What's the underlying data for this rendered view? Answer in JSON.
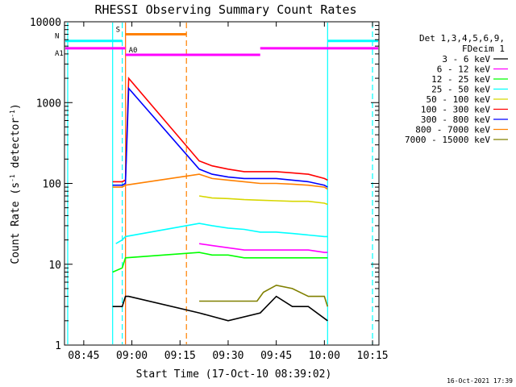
{
  "chart_data": {
    "type": "line",
    "title": "RHESSI Observing Summary Count Rates",
    "xlabel": "Start Time (17-Oct-10 08:39:02)",
    "ylabel": "Count Rate (s",
    "ylabel_sup": "-1",
    "ylabel_mid": " detector",
    "ylabel_sup2": "-1",
    "ylabel_end": ")",
    "y_scale": "log",
    "ylim": [
      1,
      10000
    ],
    "xlim": [
      "08:39",
      "10:17"
    ],
    "x_ticks": [
      {
        "time": "08:45",
        "label": "08:45"
      },
      {
        "time": "09:00",
        "label": "09:00"
      },
      {
        "time": "09:15",
        "label": "09:15"
      },
      {
        "time": "09:30",
        "label": "09:30"
      },
      {
        "time": "09:45",
        "label": "09:45"
      },
      {
        "time": "10:00",
        "label": "10:00"
      },
      {
        "time": "10:15",
        "label": "10:15"
      }
    ],
    "y_ticks": [
      {
        "value": 1,
        "label": "1"
      },
      {
        "value": 10,
        "label": "10"
      },
      {
        "value": 100,
        "label": "100"
      },
      {
        "value": 1000,
        "label": "1000"
      },
      {
        "value": 10000,
        "label": "10000"
      }
    ],
    "legend_header": [
      "Det 1,3,4,5,6,9,",
      "FDecim 1"
    ],
    "legend_position": "right",
    "series": [
      {
        "name": "3 - 6 keV",
        "color": "#000000",
        "x": [
          "08:54",
          "08:57",
          "08:58",
          "08:59",
          "09:21",
          "09:30",
          "09:40",
          "09:45",
          "09:50",
          "09:55",
          "10:01"
        ],
        "y": [
          3,
          3,
          4,
          4,
          2.5,
          2,
          2.5,
          4,
          3,
          3,
          2
        ]
      },
      {
        "name": "6 - 12 keV",
        "color": "#ff00ff",
        "x": [
          "09:21",
          "09:25",
          "09:30",
          "09:35",
          "09:40",
          "09:45",
          "09:50",
          "09:55",
          "10:00",
          "10:01"
        ],
        "y": [
          18,
          17,
          16,
          15,
          15,
          15,
          15,
          15,
          14,
          14
        ]
      },
      {
        "name": "12 - 25 keV",
        "color": "#00ff00",
        "x": [
          "08:54",
          "08:57",
          "08:58",
          "09:21",
          "09:25",
          "09:30",
          "09:35",
          "09:40",
          "09:45",
          "09:50",
          "09:55",
          "10:00",
          "10:01"
        ],
        "y": [
          8,
          9,
          12,
          14,
          13,
          13,
          12,
          12,
          12,
          12,
          12,
          12,
          12
        ]
      },
      {
        "name": "25 - 50 keV",
        "color": "#00ffff",
        "x": [
          "08:55",
          "08:57",
          "08:58",
          "09:21",
          "09:25",
          "09:30",
          "09:35",
          "09:40",
          "09:45",
          "09:50",
          "09:55",
          "10:00",
          "10:01"
        ],
        "y": [
          18,
          20,
          22,
          32,
          30,
          28,
          27,
          25,
          25,
          24,
          23,
          22,
          22
        ]
      },
      {
        "name": "50 - 100 keV",
        "color": "#d7d700",
        "x": [
          "09:21",
          "09:25",
          "09:30",
          "09:35",
          "09:40",
          "09:45",
          "09:50",
          "09:55",
          "10:00",
          "10:01"
        ],
        "y": [
          70,
          66,
          65,
          63,
          62,
          61,
          60,
          60,
          57,
          55
        ]
      },
      {
        "name": "100 - 300 keV",
        "color": "#ff0000",
        "x": [
          "08:54",
          "08:57",
          "08:58",
          "08:59",
          "09:21",
          "09:25",
          "09:30",
          "09:35",
          "09:40",
          "09:45",
          "09:50",
          "09:55",
          "10:00",
          "10:01"
        ],
        "y": [
          105,
          105,
          110,
          2000,
          190,
          165,
          150,
          140,
          140,
          140,
          135,
          130,
          115,
          110
        ]
      },
      {
        "name": "300 - 800 keV",
        "color": "#0000ff",
        "x": [
          "08:54",
          "08:57",
          "08:58",
          "08:59",
          "09:21",
          "09:25",
          "09:30",
          "09:35",
          "09:40",
          "09:45",
          "09:50",
          "09:55",
          "10:00",
          "10:01"
        ],
        "y": [
          95,
          95,
          100,
          1500,
          150,
          130,
          120,
          115,
          115,
          115,
          110,
          105,
          95,
          90
        ]
      },
      {
        "name": "800 - 7000 keV",
        "color": "#ff8000",
        "x": [
          "08:54",
          "08:57",
          "08:58",
          "09:21",
          "09:25",
          "09:30",
          "09:35",
          "09:40",
          "09:45",
          "09:50",
          "09:55",
          "10:00",
          "10:01"
        ],
        "y": [
          90,
          90,
          95,
          130,
          115,
          110,
          105,
          100,
          100,
          98,
          95,
          90,
          85
        ]
      },
      {
        "name": "7000 - 15000 keV",
        "color": "#808000",
        "x": [
          "09:21",
          "09:30",
          "09:39",
          "09:41",
          "09:45",
          "09:50",
          "09:55",
          "10:00",
          "10:01"
        ],
        "y": [
          3.5,
          3.5,
          3.5,
          4.5,
          5.5,
          5,
          4,
          4,
          3
        ]
      }
    ],
    "state_bars": [
      {
        "label": "S",
        "color": "#ff8000",
        "from": "08:58",
        "to": "09:17",
        "level": 7000,
        "label_color": "#ff8000"
      },
      {
        "label": "N",
        "color": "#00ffff",
        "from": "08:39",
        "to": "08:57",
        "level": 5800,
        "label_color": "#00ffff"
      },
      {
        "label": "",
        "color": "#00ffff",
        "from": "10:01",
        "to": "10:17",
        "level": 5800,
        "label_color": "#00ffff"
      },
      {
        "label": "A1",
        "color": "#ff00ff",
        "from": "08:39",
        "to": "08:58",
        "level": 4700,
        "label_color": "#ff00ff"
      },
      {
        "label": "A0",
        "color": "#ff00ff",
        "from": "08:58",
        "to": "09:40",
        "level": 3900,
        "label_color": "#ff00ff"
      },
      {
        "label": "",
        "color": "#ff00ff",
        "from": "09:40",
        "to": "10:17",
        "level": 4700,
        "label_color": "#ff00ff"
      }
    ],
    "vertical_markers": [
      {
        "time": "08:40",
        "color": "#00ffff",
        "style": "solid"
      },
      {
        "time": "08:54",
        "color": "#00ffff",
        "style": "solid"
      },
      {
        "time": "08:57",
        "color": "#00ffff",
        "style": "dashed"
      },
      {
        "time": "08:58",
        "color": "#ff00ff",
        "style": "solid"
      },
      {
        "time": "08:58",
        "color": "#ff8000",
        "style": "solid"
      },
      {
        "time": "09:17",
        "color": "#ff8000",
        "style": "dashed"
      },
      {
        "time": "10:01",
        "color": "#00ffff",
        "style": "solid"
      },
      {
        "time": "10:15",
        "color": "#00ffff",
        "style": "dashed"
      }
    ],
    "timestamp": "16-Oct-2021 17:39"
  }
}
